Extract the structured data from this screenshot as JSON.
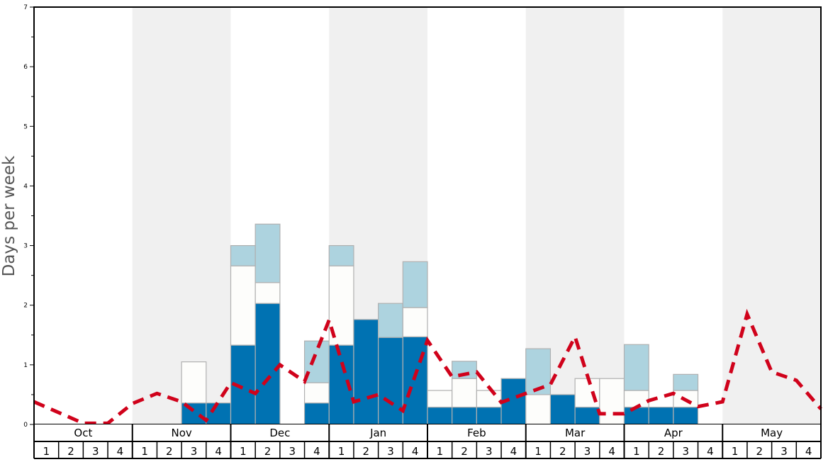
{
  "chart_data": {
    "type": "bar",
    "stacked": true,
    "ylabel": "Days per week",
    "ylim": [
      0,
      7
    ],
    "yticks": [
      "0",
      "1",
      "2",
      "3",
      "4",
      "5",
      "6",
      "7"
    ],
    "months": [
      "Oct",
      "Nov",
      "Dec",
      "Jan",
      "Feb",
      "Mar",
      "Apr",
      "May"
    ],
    "week_labels": [
      "1",
      "2",
      "3",
      "4"
    ],
    "grid": false,
    "colors": {
      "bottom": "#0072b2",
      "middle": "#fdfdfb",
      "top": "#add3df",
      "line": "#d0021b",
      "band": "#f0f0f0"
    },
    "series": [
      {
        "values": [
          0,
          0,
          0,
          0,
          0,
          0,
          0.36,
          0.36,
          1.33,
          2.03,
          0,
          0.36,
          1.33,
          1.76,
          1.46,
          1.47,
          0.29,
          0.29,
          0.29,
          0.77,
          0,
          0.5,
          0.29,
          0,
          0.29,
          0.29,
          0.29,
          0,
          0,
          0,
          0,
          0
        ]
      },
      {
        "values": [
          0,
          0,
          0,
          0,
          0,
          0,
          0.69,
          0,
          1.33,
          0.35,
          0,
          0.34,
          1.33,
          0,
          0,
          0.49,
          0.28,
          0.48,
          0.28,
          0,
          0.5,
          0,
          0.48,
          0.77,
          0.28,
          0,
          0.28,
          0,
          0,
          0,
          0,
          0
        ]
      },
      {
        "values": [
          0,
          0,
          0,
          0,
          0,
          0,
          0,
          0,
          0.34,
          0.98,
          0,
          0.7,
          0.34,
          0,
          0.57,
          0.77,
          0,
          0.29,
          0,
          0,
          0.77,
          0,
          0,
          0,
          0.77,
          0,
          0.27,
          0,
          0,
          0,
          0,
          0
        ]
      }
    ],
    "line": {
      "style": "dashed",
      "values": [
        0.38,
        0.2,
        0.02,
        0.02,
        0.35,
        0.52,
        0.38,
        0.07,
        0.7,
        0.52,
        1.0,
        0.72,
        1.75,
        0.38,
        0.5,
        0.23,
        1.41,
        0.8,
        0.88,
        0.37,
        0.52,
        0.67,
        1.47,
        0.18,
        0.18,
        0.4,
        0.52,
        0.3,
        0.38,
        1.85,
        0.88,
        0.74,
        0.26
      ]
    }
  }
}
